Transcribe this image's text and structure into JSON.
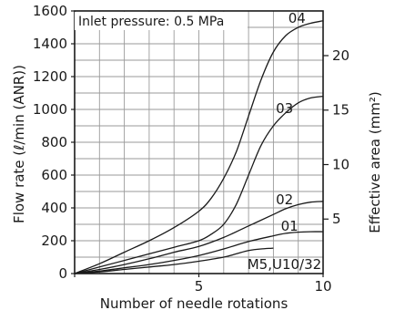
{
  "chart_data": {
    "type": "line",
    "title": "",
    "annotation": "Inlet pressure: 0.5 MPa",
    "xlabel": "Number of needle rotations",
    "ylabel": "Flow rate (ℓ/min (ANR))",
    "y2label": "Effective area (mm²)",
    "xlim": [
      0,
      10
    ],
    "ylim": [
      0,
      1600
    ],
    "y2lim": [
      0,
      24.1
    ],
    "xticks": [
      0,
      5,
      10
    ],
    "yticks": [
      0,
      200,
      400,
      600,
      800,
      1000,
      1200,
      1400,
      1600
    ],
    "y2ticks": [
      5,
      10,
      15,
      20
    ],
    "x_grid_step": 1,
    "y_grid_step": 100,
    "grid": true,
    "series": [
      {
        "name": "04",
        "x": [
          0,
          1,
          2,
          3,
          4,
          5,
          5.5,
          6,
          6.5,
          7,
          7.5,
          8,
          8.5,
          9,
          9.5,
          10
        ],
        "y": [
          0,
          60,
          130,
          200,
          280,
          380,
          460,
          580,
          740,
          960,
          1180,
          1350,
          1450,
          1500,
          1525,
          1540
        ]
      },
      {
        "name": "03",
        "x": [
          0,
          1,
          2,
          3,
          4,
          5,
          5.5,
          6,
          6.5,
          7,
          7.5,
          8,
          8.5,
          9,
          9.5,
          10
        ],
        "y": [
          0,
          40,
          80,
          120,
          160,
          200,
          240,
          300,
          420,
          600,
          780,
          900,
          980,
          1040,
          1070,
          1080
        ]
      },
      {
        "name": "02",
        "x": [
          0,
          1,
          2,
          3,
          4,
          5,
          6,
          7,
          8,
          8.5,
          9,
          9.5,
          10
        ],
        "y": [
          0,
          25,
          55,
          90,
          130,
          165,
          220,
          290,
          360,
          395,
          420,
          435,
          440
        ]
      },
      {
        "name": "01",
        "x": [
          0,
          1,
          2,
          3,
          4,
          5,
          6,
          7,
          8,
          8.5,
          9,
          9.5,
          10
        ],
        "y": [
          0,
          15,
          35,
          55,
          80,
          110,
          150,
          195,
          230,
          245,
          252,
          255,
          255
        ]
      },
      {
        "name": "M5,U10/32",
        "x": [
          0,
          1,
          2,
          3,
          4,
          5,
          6,
          6.5,
          7,
          7.5,
          8
        ],
        "y": [
          0,
          10,
          25,
          40,
          55,
          75,
          100,
          120,
          140,
          150,
          155
        ]
      }
    ]
  }
}
